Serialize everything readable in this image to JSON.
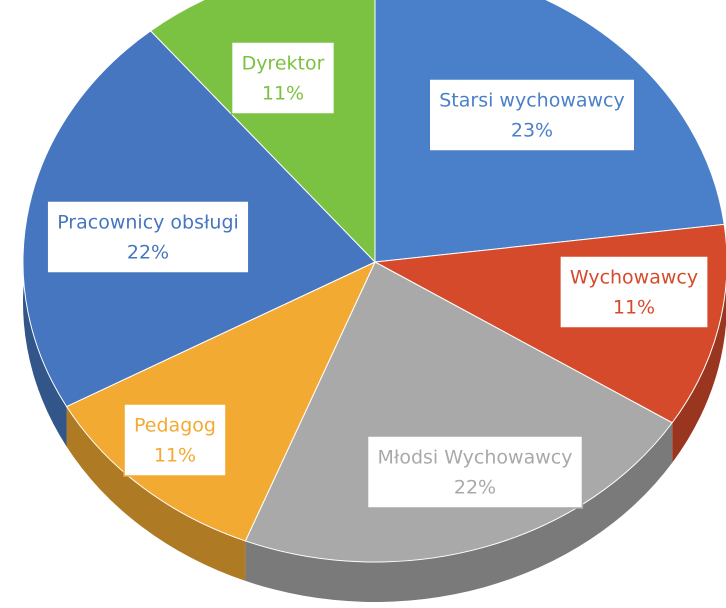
{
  "chart_data": {
    "type": "pie",
    "categories": [
      "Starsi wychowawcy",
      "Wychowawcy",
      "Młodsi Wychowawcy",
      "Pedagog",
      "Pracownicy obsługi",
      "Dyrektor"
    ],
    "values": [
      23,
      11,
      22,
      11,
      22,
      11
    ],
    "value_labels": [
      "23%",
      "11%",
      "22%",
      "11%",
      "22%",
      "11%"
    ],
    "colors": [
      "#4a80c9",
      "#d64a2c",
      "#a9a9a9",
      "#f2aa32",
      "#4676c0",
      "#7cc242"
    ]
  }
}
